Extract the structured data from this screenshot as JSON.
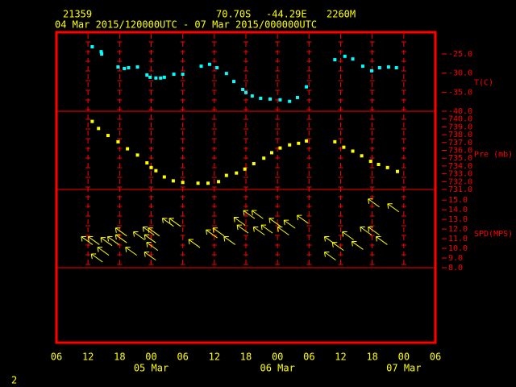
{
  "header": {
    "station": "21359",
    "lat": "70.70S",
    "lon": "-44.29E",
    "elevation": "2260M",
    "period": "04 Mar 2015/120000UTC - 07 Mar 2015/000000UTC",
    "page": "2"
  },
  "chart_data": [
    {
      "type": "scatter",
      "ylabel": "T(C)",
      "color": "#00ffff",
      "xlim": [
        0,
        72
      ],
      "ylim": [
        -40,
        -19.3
      ],
      "yticks": [
        {
          "value": -25,
          "label": "-25.0"
        },
        {
          "value": -30,
          "label": "-30.0"
        },
        {
          "value": -35,
          "label": "-35.0"
        },
        {
          "value": -40,
          "label": "-40.0"
        }
      ],
      "x": [
        6.8,
        8.5,
        8.6,
        11.7,
        12.9,
        13.7,
        15.4,
        17.2,
        17.8,
        18.9,
        19.8,
        20.5,
        22.3,
        24.0,
        27.5,
        29.1,
        30.5,
        32.3,
        33.7,
        35.4,
        36.0,
        37.2,
        38.8,
        40.6,
        42.5,
        44.3,
        45.8,
        47.5,
        52.9,
        54.8,
        56.3,
        58.2,
        59.9,
        61.4,
        63.1,
        64.6
      ],
      "values": [
        -23.1,
        -24.4,
        -25.0,
        -28.4,
        -28.8,
        -28.6,
        -28.4,
        -30.5,
        -31.1,
        -31.3,
        -31.3,
        -31.1,
        -30.3,
        -30.3,
        -28.2,
        -27.7,
        -28.6,
        -30.1,
        -32.2,
        -34.3,
        -35.1,
        -36.0,
        -36.6,
        -36.8,
        -37.0,
        -37.4,
        -36.4,
        -33.6,
        -26.5,
        -25.6,
        -26.3,
        -28.2,
        -29.4,
        -28.6,
        -28.4,
        -28.6
      ]
    },
    {
      "type": "scatter",
      "ylabel": "Pre (mb)",
      "color": "#ffff00",
      "xlim": [
        0,
        72
      ],
      "ylim": [
        731,
        741
      ],
      "yticks": [
        {
          "value": 740,
          "label": "740.0"
        },
        {
          "value": 739,
          "label": "739.0"
        },
        {
          "value": 738,
          "label": "738.0"
        },
        {
          "value": 737,
          "label": "737.0"
        },
        {
          "value": 736,
          "label": "736.0"
        },
        {
          "value": 735,
          "label": "735.0"
        },
        {
          "value": 734,
          "label": "734.0"
        },
        {
          "value": 733,
          "label": "733.0"
        },
        {
          "value": 732,
          "label": "732.0"
        },
        {
          "value": 731,
          "label": "731.0"
        }
      ],
      "x": [
        6.8,
        8.0,
        9.8,
        11.7,
        13.5,
        15.4,
        17.2,
        18.0,
        18.9,
        20.5,
        22.2,
        24.0,
        26.9,
        28.8,
        30.8,
        32.3,
        34.2,
        35.8,
        37.5,
        39.4,
        40.9,
        42.5,
        44.3,
        46.0,
        47.5,
        52.9,
        54.6,
        56.3,
        58.0,
        59.7,
        61.2,
        62.9,
        64.8
      ],
      "values": [
        739.7,
        738.8,
        737.9,
        737.1,
        736.2,
        735.4,
        734.4,
        733.8,
        733.4,
        732.6,
        732.1,
        731.9,
        731.8,
        731.8,
        732.0,
        732.8,
        733.1,
        733.6,
        734.3,
        735.0,
        735.7,
        736.3,
        736.7,
        736.9,
        737.2,
        737.1,
        736.4,
        735.9,
        735.3,
        734.6,
        734.2,
        733.8,
        733.3
      ]
    },
    {
      "type": "arrows",
      "ylabel": "SPD(MPS)",
      "color": "#ffff00",
      "xlim": [
        0,
        72
      ],
      "ylim": [
        8,
        16.1
      ],
      "yticks": [
        {
          "value": 15,
          "label": "15.0"
        },
        {
          "value": 14,
          "label": "14.0"
        },
        {
          "value": 13,
          "label": "13.0"
        },
        {
          "value": 12,
          "label": "12.0"
        },
        {
          "value": 11,
          "label": "11.0"
        },
        {
          "value": 10,
          "label": "10.0"
        },
        {
          "value": 9,
          "label": "9.0"
        },
        {
          "value": 8,
          "label": "8.0"
        }
      ],
      "x": [
        5.8,
        7.1,
        7.7,
        8.9,
        9.5,
        10.8,
        12.3,
        12.3,
        14.2,
        15.7,
        17.5,
        17.8,
        17.8,
        18.2,
        18.5,
        21.2,
        22.5,
        26.2,
        29.5,
        30.8,
        32.9,
        34.8,
        35.4,
        36.6,
        38.2,
        38.5,
        40.0,
        41.5,
        43.1,
        44.3,
        46.8,
        52.0,
        52.0,
        53.5,
        55.4,
        57.2,
        58.8,
        60.3,
        60.3,
        61.8,
        64.0
      ],
      "values": [
        10.8,
        10.8,
        9.0,
        9.7,
        10.7,
        10.8,
        11.7,
        11.0,
        9.7,
        11.3,
        11.8,
        11.0,
        9.2,
        10.2,
        11.7,
        12.7,
        12.7,
        10.5,
        11.5,
        11.7,
        10.8,
        12.8,
        12.0,
        13.5,
        13.5,
        11.8,
        12.0,
        12.7,
        11.8,
        12.5,
        13.0,
        10.8,
        9.2,
        10.2,
        11.3,
        10.3,
        11.8,
        11.8,
        14.7,
        10.8,
        14.2
      ],
      "xticks": [
        {
          "value": 0,
          "label": "06"
        },
        {
          "value": 6,
          "label": "12"
        },
        {
          "value": 12,
          "label": "18"
        },
        {
          "value": 18,
          "label": "00"
        },
        {
          "value": 24,
          "label": "06"
        },
        {
          "value": 30,
          "label": "12"
        },
        {
          "value": 36,
          "label": "18"
        },
        {
          "value": 42,
          "label": "00"
        },
        {
          "value": 48,
          "label": "06"
        },
        {
          "value": 54,
          "label": "12"
        },
        {
          "value": 60,
          "label": "18"
        },
        {
          "value": 66,
          "label": "00"
        },
        {
          "value": 72,
          "label": "06"
        }
      ],
      "xdates": [
        {
          "value": 18,
          "label": "05 Mar"
        },
        {
          "value": 42,
          "label": "06 Mar"
        },
        {
          "value": 66,
          "label": "07 Mar"
        }
      ]
    }
  ]
}
